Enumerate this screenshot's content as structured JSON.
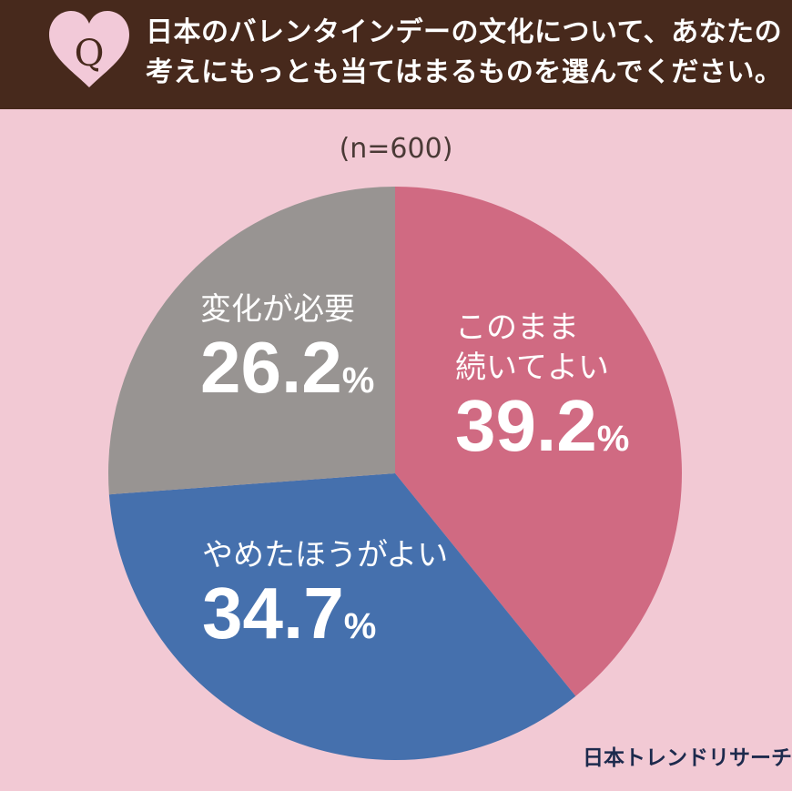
{
  "header": {
    "icon": "heart-q-icon",
    "icon_letter": "Q",
    "question_line1": "日本のバレンタインデーの文化について、あなたの",
    "question_line2": "考えにもっとも当てはまるものを選んでください。",
    "background_color": "#47291c"
  },
  "sample_size_label": "(n=600)",
  "slices": [
    {
      "label_line1": "このまま",
      "label_line2": "続いてよい",
      "value": "39.2",
      "unit": "%",
      "color": "#d06a82"
    },
    {
      "label_line1": "やめたほうがよい",
      "label_line2": "",
      "value": "34.7",
      "unit": "%",
      "color": "#4570ad"
    },
    {
      "label_line1": "変化が必要",
      "label_line2": "",
      "value": "26.2",
      "unit": "%",
      "color": "#989492"
    }
  ],
  "brand": "日本トレンドリサーチ",
  "chart_data": {
    "type": "pie",
    "title": "日本のバレンタインデーの文化について、あなたの考えにもっとも当てはまるものを選んでください。",
    "subtitle": "(n=600)",
    "categories": [
      "このまま続いてよい",
      "やめたほうがよい",
      "変化が必要"
    ],
    "values": [
      39.2,
      34.7,
      26.2
    ],
    "unit": "%",
    "colors": [
      "#d06a82",
      "#4570ad",
      "#989492"
    ],
    "start_angle": "12 o'clock, clockwise",
    "legend": "inline labels",
    "source": "日本トレンドリサーチ"
  }
}
